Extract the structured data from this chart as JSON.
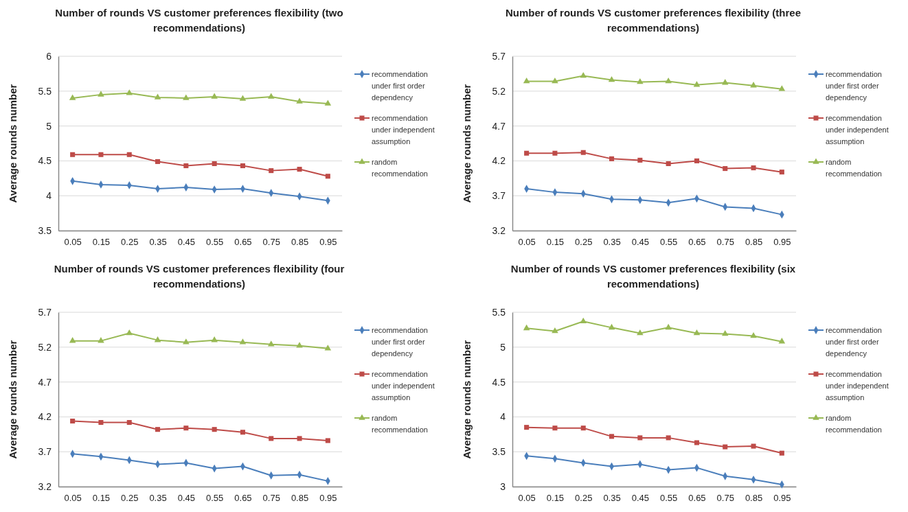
{
  "chart_data": [
    {
      "type": "line",
      "title": "Number of rounds VS customer preferences flexibility (two recommendations)",
      "ylabel": "Average rounds number",
      "categories": [
        "0.05",
        "0.15",
        "0.25",
        "0.35",
        "0.45",
        "0.55",
        "0.65",
        "0.75",
        "0.85",
        "0.95"
      ],
      "ylim": [
        3.5,
        6
      ],
      "yticks": [
        3.5,
        4,
        4.5,
        5,
        5.5,
        6
      ],
      "grid": "y",
      "legend": "right",
      "series": [
        {
          "name": "recommendation under first order dependency",
          "color": "#4a7ebb",
          "marker": "diamond",
          "values": [
            4.21,
            4.16,
            4.15,
            4.1,
            4.12,
            4.09,
            4.1,
            4.04,
            3.99,
            3.93
          ]
        },
        {
          "name": "recommendation under independent assumption",
          "color": "#be4b48",
          "marker": "square",
          "values": [
            4.59,
            4.59,
            4.59,
            4.49,
            4.43,
            4.46,
            4.43,
            4.36,
            4.38,
            4.28
          ]
        },
        {
          "name": "random recommendation",
          "color": "#98b954",
          "marker": "triangle",
          "values": [
            5.4,
            5.45,
            5.47,
            5.41,
            5.4,
            5.42,
            5.39,
            5.42,
            5.35,
            5.32
          ]
        }
      ]
    },
    {
      "type": "line",
      "title": "Number of rounds VS customer preferences flexibility (three recommendations)",
      "ylabel": "Average rounds number",
      "categories": [
        "0.05",
        "0.15",
        "0.25",
        "0.35",
        "0.45",
        "0.55",
        "0.65",
        "0.75",
        "0.85",
        "0.95"
      ],
      "ylim": [
        3.2,
        5.7
      ],
      "yticks": [
        3.2,
        3.7,
        4.2,
        4.7,
        5.2,
        5.7
      ],
      "grid": "y",
      "legend": "right",
      "series": [
        {
          "name": "recommendation under first order dependency",
          "color": "#4a7ebb",
          "marker": "diamond",
          "values": [
            3.8,
            3.75,
            3.73,
            3.65,
            3.64,
            3.6,
            3.66,
            3.54,
            3.52,
            3.43
          ]
        },
        {
          "name": "recommendation under independent assumption",
          "color": "#be4b48",
          "marker": "square",
          "values": [
            4.31,
            4.31,
            4.32,
            4.23,
            4.21,
            4.16,
            4.2,
            4.09,
            4.1,
            4.04
          ]
        },
        {
          "name": "random recommendation",
          "color": "#98b954",
          "marker": "triangle",
          "values": [
            5.34,
            5.34,
            5.42,
            5.36,
            5.33,
            5.34,
            5.29,
            5.32,
            5.28,
            5.23
          ]
        }
      ]
    },
    {
      "type": "line",
      "title": "Number of rounds VS customer preferences flexibility (four recommendations)",
      "ylabel": "Average rounds number",
      "categories": [
        "0.05",
        "0.15",
        "0.25",
        "0.35",
        "0.45",
        "0.55",
        "0.65",
        "0.75",
        "0.85",
        "0.95"
      ],
      "ylim": [
        3.2,
        5.7
      ],
      "yticks": [
        3.2,
        3.7,
        4.2,
        4.7,
        5.2,
        5.7
      ],
      "grid": "y",
      "legend": "right",
      "series": [
        {
          "name": "recommendation under first order dependency",
          "color": "#4a7ebb",
          "marker": "diamond",
          "values": [
            3.67,
            3.63,
            3.58,
            3.52,
            3.54,
            3.46,
            3.49,
            3.36,
            3.37,
            3.28
          ]
        },
        {
          "name": "recommendation under independent assumption",
          "color": "#be4b48",
          "marker": "square",
          "values": [
            4.14,
            4.12,
            4.12,
            4.02,
            4.04,
            4.02,
            3.98,
            3.89,
            3.89,
            3.86
          ]
        },
        {
          "name": "random recommendation",
          "color": "#98b954",
          "marker": "triangle",
          "values": [
            5.29,
            5.29,
            5.4,
            5.3,
            5.27,
            5.3,
            5.27,
            5.24,
            5.22,
            5.18
          ]
        }
      ]
    },
    {
      "type": "line",
      "title": "Number of rounds VS customer preferences flexibility (six recommendations)",
      "ylabel": "Average rounds number",
      "categories": [
        "0.05",
        "0.15",
        "0.25",
        "0.35",
        "0.45",
        "0.55",
        "0.65",
        "0.75",
        "0.85",
        "0.95"
      ],
      "ylim": [
        3,
        5.5
      ],
      "yticks": [
        3,
        3.5,
        4,
        4.5,
        5,
        5.5
      ],
      "grid": "y",
      "legend": "right",
      "series": [
        {
          "name": "recommendation under first order dependency",
          "color": "#4a7ebb",
          "marker": "diamond",
          "values": [
            3.44,
            3.4,
            3.34,
            3.29,
            3.32,
            3.24,
            3.27,
            3.15,
            3.1,
            3.03
          ]
        },
        {
          "name": "recommendation under independent assumption",
          "color": "#be4b48",
          "marker": "square",
          "values": [
            3.85,
            3.84,
            3.84,
            3.72,
            3.7,
            3.7,
            3.63,
            3.57,
            3.58,
            3.48
          ]
        },
        {
          "name": "random recommendation",
          "color": "#98b954",
          "marker": "triangle",
          "values": [
            5.27,
            5.23,
            5.37,
            5.28,
            5.2,
            5.28,
            5.2,
            5.19,
            5.16,
            5.08
          ]
        }
      ]
    }
  ]
}
